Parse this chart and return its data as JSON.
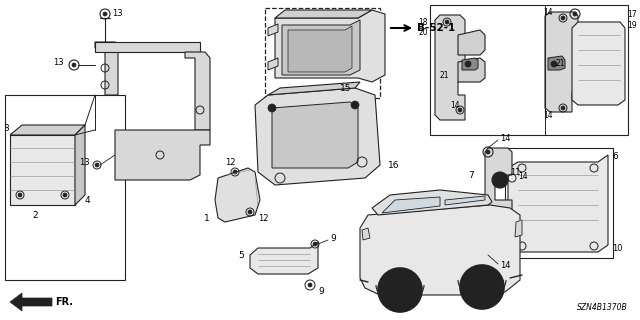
{
  "bg_color": "#ffffff",
  "line_color": "#222222",
  "text_color": "#000000",
  "fig_width": 6.4,
  "fig_height": 3.2,
  "dpi": 100,
  "diagram_code": "SZN4B1370B",
  "ref_label": "B-52-1",
  "direction_label": "FR."
}
